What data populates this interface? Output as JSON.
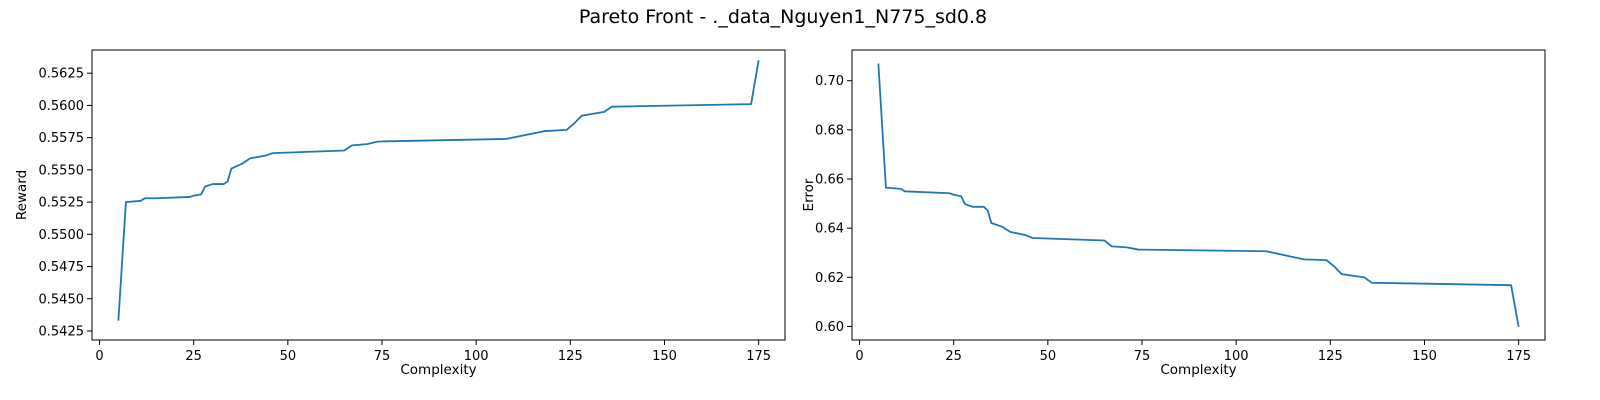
{
  "figure": {
    "title": "Pareto Front - ._data_Nguyen1_N775_sd0.8"
  },
  "chart_data": [
    {
      "type": "line",
      "title": "",
      "xlabel": "Complexity",
      "ylabel": "Reward",
      "xlim": [
        -2,
        182
      ],
      "ylim": [
        0.5418,
        0.5643
      ],
      "xticks": [
        0,
        25,
        50,
        75,
        100,
        125,
        150,
        175
      ],
      "yticks": [
        0.5425,
        0.545,
        0.5475,
        0.55,
        0.5525,
        0.555,
        0.5575,
        0.56,
        0.5625
      ],
      "ytick_labels": [
        "0.5425",
        "0.5450",
        "0.5475",
        "0.5500",
        "0.5525",
        "0.5550",
        "0.5575",
        "0.5600",
        "0.5625"
      ],
      "xtick_labels": [
        "0",
        "25",
        "50",
        "75",
        "100",
        "125",
        "150",
        "175"
      ],
      "grid": false,
      "color": "#1f77b4",
      "x": [
        5,
        7,
        11,
        12,
        15,
        24,
        25,
        27,
        28,
        30,
        33,
        34,
        35,
        38,
        40,
        44,
        46,
        65,
        67,
        71,
        74,
        108,
        118,
        124,
        126,
        128,
        134,
        136,
        173,
        175
      ],
      "y": [
        0.5433,
        0.5525,
        0.5526,
        0.5528,
        0.5528,
        0.5529,
        0.553,
        0.5531,
        0.5537,
        0.5539,
        0.5539,
        0.5541,
        0.5551,
        0.5555,
        0.5559,
        0.5561,
        0.5563,
        0.5565,
        0.5569,
        0.557,
        0.5572,
        0.5574,
        0.558,
        0.5581,
        0.5586,
        0.5592,
        0.5595,
        0.5599,
        0.5601,
        0.5635
      ]
    },
    {
      "type": "line",
      "title": "",
      "xlabel": "Complexity",
      "ylabel": "Error",
      "xlim": [
        -2,
        182
      ],
      "ylim": [
        0.5945,
        0.7125
      ],
      "xticks": [
        0,
        25,
        50,
        75,
        100,
        125,
        150,
        175
      ],
      "yticks": [
        0.6,
        0.62,
        0.64,
        0.66,
        0.68,
        0.7
      ],
      "ytick_labels": [
        "0.60",
        "0.62",
        "0.64",
        "0.66",
        "0.68",
        "0.70"
      ],
      "xtick_labels": [
        "0",
        "25",
        "50",
        "75",
        "100",
        "125",
        "150",
        "175"
      ],
      "grid": false,
      "color": "#1f77b4",
      "x": [
        5,
        7,
        11,
        12,
        15,
        24,
        25,
        27,
        28,
        30,
        33,
        34,
        35,
        38,
        40,
        44,
        46,
        65,
        67,
        71,
        74,
        108,
        118,
        124,
        126,
        128,
        134,
        136,
        173,
        175
      ],
      "y": [
        0.707,
        0.6565,
        0.656,
        0.655,
        0.6548,
        0.6542,
        0.6536,
        0.653,
        0.6498,
        0.6487,
        0.6487,
        0.6473,
        0.6421,
        0.6405,
        0.6385,
        0.6372,
        0.636,
        0.635,
        0.6326,
        0.6322,
        0.6313,
        0.6306,
        0.6273,
        0.627,
        0.6245,
        0.6213,
        0.62,
        0.6178,
        0.6168,
        0.5999
      ]
    }
  ]
}
